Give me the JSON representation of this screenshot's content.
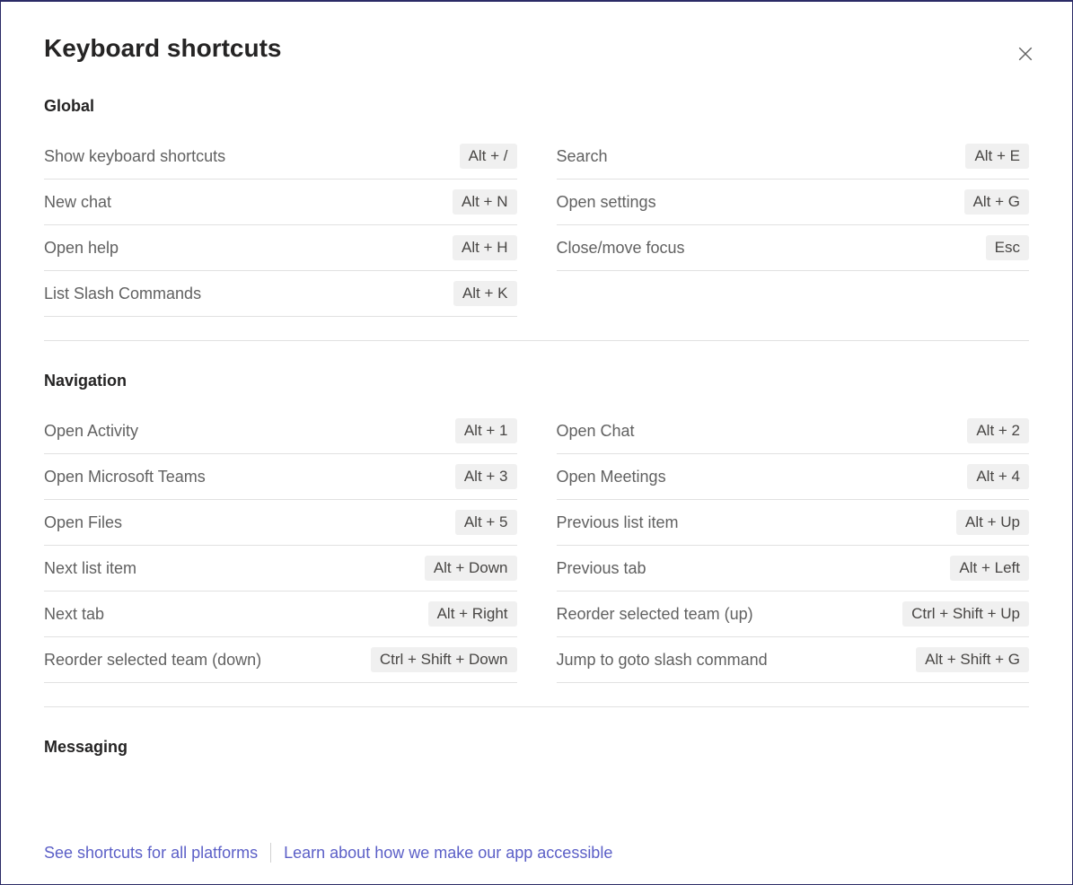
{
  "title": "Keyboard shortcuts",
  "sections": [
    {
      "name": "Global",
      "rows": [
        {
          "label": "Show keyboard shortcuts",
          "key": "Alt + /"
        },
        {
          "label": "Search",
          "key": "Alt + E"
        },
        {
          "label": "New chat",
          "key": "Alt + N"
        },
        {
          "label": "Open settings",
          "key": "Alt + G"
        },
        {
          "label": "Open help",
          "key": "Alt + H"
        },
        {
          "label": "Close/move focus",
          "key": "Esc"
        },
        {
          "label": "List Slash Commands",
          "key": "Alt + K"
        }
      ]
    },
    {
      "name": "Navigation",
      "rows": [
        {
          "label": "Open Activity",
          "key": "Alt + 1"
        },
        {
          "label": "Open Chat",
          "key": "Alt + 2"
        },
        {
          "label": "Open Microsoft Teams",
          "key": "Alt + 3"
        },
        {
          "label": "Open Meetings",
          "key": "Alt + 4"
        },
        {
          "label": "Open Files",
          "key": "Alt + 5"
        },
        {
          "label": "Previous list item",
          "key": "Alt + Up"
        },
        {
          "label": "Next list item",
          "key": "Alt + Down"
        },
        {
          "label": "Previous tab",
          "key": "Alt + Left"
        },
        {
          "label": "Next tab",
          "key": "Alt + Right"
        },
        {
          "label": "Reorder selected team (up)",
          "key": "Ctrl + Shift + Up"
        },
        {
          "label": "Reorder selected team (down)",
          "key": "Ctrl + Shift + Down"
        },
        {
          "label": "Jump to goto slash command",
          "key": "Alt + Shift + G"
        }
      ]
    },
    {
      "name": "Messaging",
      "rows": []
    }
  ],
  "footer": {
    "link1": "See shortcuts for all platforms",
    "link2": "Learn about how we make our app accessible"
  }
}
